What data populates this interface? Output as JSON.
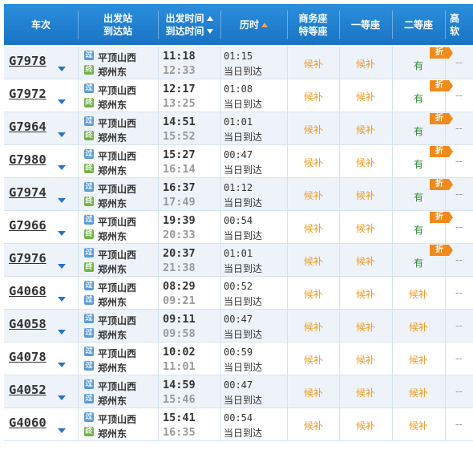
{
  "header": {
    "train_no": "车次",
    "from_station": "出发站",
    "to_station": "到达站",
    "dep_time": "出发时间",
    "arr_time": "到达时间",
    "duration": "历时",
    "business_1": "商务座",
    "business_2": "特等座",
    "first_class": "一等座",
    "second_class": "二等座",
    "high_soft_1": "高",
    "high_soft_2": "软"
  },
  "icons": {
    "pass": "过",
    "end": "终",
    "discount": "折"
  },
  "colors": {
    "header": "#1a73c4",
    "houbu": "#f39a1e",
    "available": "#2f8a2f",
    "discount": "#f08a1c"
  },
  "rows": [
    {
      "no": "G7978",
      "from_icon": "过",
      "from": "平顶山西",
      "to_icon": "终",
      "to": "郑州东",
      "dep": "11:18",
      "arr": "12:33",
      "dur": "01:15",
      "note": "当日到达",
      "business": "候补",
      "first": "候补",
      "second": "有",
      "discount": "折",
      "soft": "--"
    },
    {
      "no": "G7972",
      "from_icon": "过",
      "from": "平顶山西",
      "to_icon": "终",
      "to": "郑州东",
      "dep": "12:17",
      "arr": "13:25",
      "dur": "01:08",
      "note": "当日到达",
      "business": "候补",
      "first": "候补",
      "second": "有",
      "discount": "折",
      "soft": "--"
    },
    {
      "no": "G7964",
      "from_icon": "过",
      "from": "平顶山西",
      "to_icon": "终",
      "to": "郑州东",
      "dep": "14:51",
      "arr": "15:52",
      "dur": "01:01",
      "note": "当日到达",
      "business": "候补",
      "first": "候补",
      "second": "有",
      "discount": "折",
      "soft": "--"
    },
    {
      "no": "G7980",
      "from_icon": "过",
      "from": "平顶山西",
      "to_icon": "终",
      "to": "郑州东",
      "dep": "15:27",
      "arr": "16:14",
      "dur": "00:47",
      "note": "当日到达",
      "business": "候补",
      "first": "候补",
      "second": "有",
      "discount": "折",
      "soft": "--"
    },
    {
      "no": "G7974",
      "from_icon": "过",
      "from": "平顶山西",
      "to_icon": "终",
      "to": "郑州东",
      "dep": "16:37",
      "arr": "17:49",
      "dur": "01:12",
      "note": "当日到达",
      "business": "候补",
      "first": "候补",
      "second": "有",
      "discount": "折",
      "soft": "--"
    },
    {
      "no": "G7966",
      "from_icon": "过",
      "from": "平顶山西",
      "to_icon": "终",
      "to": "郑州东",
      "dep": "19:39",
      "arr": "20:33",
      "dur": "00:54",
      "note": "当日到达",
      "business": "候补",
      "first": "候补",
      "second": "有",
      "discount": "折",
      "soft": "--"
    },
    {
      "no": "G7976",
      "from_icon": "过",
      "from": "平顶山西",
      "to_icon": "终",
      "to": "郑州东",
      "dep": "20:37",
      "arr": "21:38",
      "dur": "01:01",
      "note": "当日到达",
      "business": "候补",
      "first": "候补",
      "second": "有",
      "discount": "折",
      "soft": "--"
    },
    {
      "no": "G4068",
      "from_icon": "过",
      "from": "平顶山西",
      "to_icon": "过",
      "to": "郑州东",
      "dep": "08:29",
      "arr": "09:21",
      "dur": "00:52",
      "note": "当日到达",
      "business": "候补",
      "first": "候补",
      "second": "候补",
      "discount": "",
      "soft": "--"
    },
    {
      "no": "G4058",
      "from_icon": "过",
      "from": "平顶山西",
      "to_icon": "过",
      "to": "郑州东",
      "dep": "09:11",
      "arr": "09:58",
      "dur": "00:47",
      "note": "当日到达",
      "business": "候补",
      "first": "候补",
      "second": "候补",
      "discount": "",
      "soft": "--"
    },
    {
      "no": "G4078",
      "from_icon": "过",
      "from": "平顶山西",
      "to_icon": "过",
      "to": "郑州东",
      "dep": "10:02",
      "arr": "11:01",
      "dur": "00:59",
      "note": "当日到达",
      "business": "候补",
      "first": "候补",
      "second": "候补",
      "discount": "",
      "soft": "--"
    },
    {
      "no": "G4052",
      "from_icon": "过",
      "from": "平顶山西",
      "to_icon": "过",
      "to": "郑州东",
      "dep": "14:59",
      "arr": "15:46",
      "dur": "00:47",
      "note": "当日到达",
      "business": "候补",
      "first": "候补",
      "second": "候补",
      "discount": "",
      "soft": "--"
    },
    {
      "no": "G4060",
      "from_icon": "过",
      "from": "平顶山西",
      "to_icon": "终",
      "to": "郑州东",
      "dep": "15:41",
      "arr": "16:35",
      "dur": "00:54",
      "note": "当日到达",
      "business": "候补",
      "first": "候补",
      "second": "候补",
      "discount": "",
      "soft": "--"
    }
  ]
}
